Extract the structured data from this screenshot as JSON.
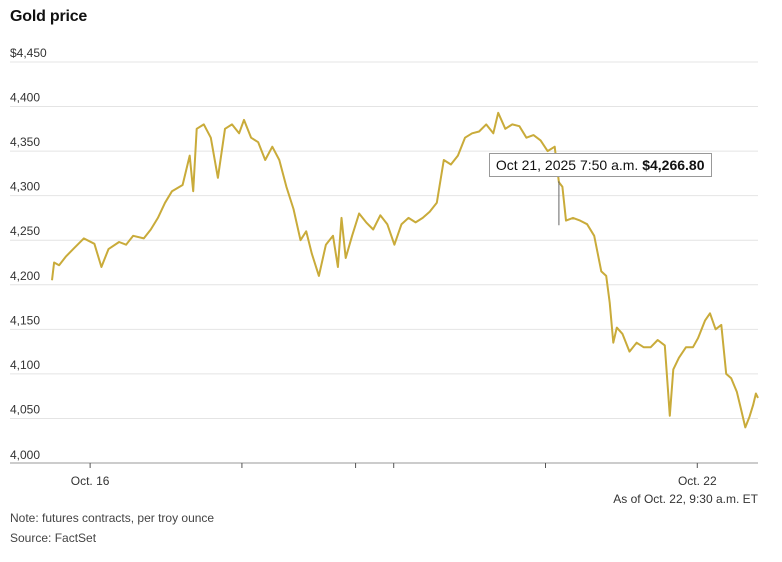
{
  "title": "Gold price",
  "as_of": "As of Oct. 22, 9:30 a.m. ET",
  "note": "Note: futures contracts, per troy ounce",
  "source": "Source: FactSet",
  "tooltip": {
    "time": "Oct 21, 2025 7:50 a.m.",
    "value": "$4,266.80"
  },
  "colors": {
    "line": "#c9ab3a",
    "grid": "#e4e4e4",
    "axis": "#999999"
  },
  "chart_data": {
    "type": "line",
    "title": "Gold price",
    "xlabel": "",
    "ylabel": "",
    "ylim": [
      4000,
      4450
    ],
    "y_ticks": [
      4000,
      4050,
      4100,
      4150,
      4200,
      4250,
      4300,
      4350,
      4400,
      4450
    ],
    "y_tick_labels": [
      "4,000",
      "4,050",
      "4,100",
      "4,150",
      "4,200",
      "4,250",
      "4,300",
      "4,350",
      "4,400",
      "$4,450"
    ],
    "x_ticks": [
      {
        "x": 0.054,
        "label": "Oct. 16"
      },
      {
        "x": 0.269,
        "label": ""
      },
      {
        "x": 0.43,
        "label": ""
      },
      {
        "x": 0.484,
        "label": ""
      },
      {
        "x": 0.699,
        "label": ""
      },
      {
        "x": 0.914,
        "label": "Oct. 22"
      }
    ],
    "grid": true,
    "series": [
      {
        "values": [
          [
            0.0,
            4205
          ],
          [
            0.003,
            4225
          ],
          [
            0.01,
            4222
          ],
          [
            0.02,
            4232
          ],
          [
            0.03,
            4240
          ],
          [
            0.045,
            4252
          ],
          [
            0.06,
            4246
          ],
          [
            0.07,
            4220
          ],
          [
            0.08,
            4240
          ],
          [
            0.095,
            4248
          ],
          [
            0.105,
            4245
          ],
          [
            0.115,
            4255
          ],
          [
            0.13,
            4252
          ],
          [
            0.14,
            4262
          ],
          [
            0.15,
            4275
          ],
          [
            0.16,
            4292
          ],
          [
            0.17,
            4305
          ],
          [
            0.185,
            4312
          ],
          [
            0.195,
            4345
          ],
          [
            0.2,
            4305
          ],
          [
            0.205,
            4375
          ],
          [
            0.215,
            4380
          ],
          [
            0.225,
            4365
          ],
          [
            0.235,
            4320
          ],
          [
            0.245,
            4375
          ],
          [
            0.255,
            4380
          ],
          [
            0.265,
            4370
          ],
          [
            0.272,
            4385
          ],
          [
            0.282,
            4365
          ],
          [
            0.292,
            4360
          ],
          [
            0.302,
            4340
          ],
          [
            0.312,
            4355
          ],
          [
            0.322,
            4340
          ],
          [
            0.332,
            4310
          ],
          [
            0.342,
            4285
          ],
          [
            0.352,
            4250
          ],
          [
            0.36,
            4260
          ],
          [
            0.368,
            4235
          ],
          [
            0.378,
            4210
          ],
          [
            0.388,
            4245
          ],
          [
            0.398,
            4255
          ],
          [
            0.405,
            4220
          ],
          [
            0.41,
            4275
          ],
          [
            0.416,
            4230
          ],
          [
            0.425,
            4255
          ],
          [
            0.435,
            4280
          ],
          [
            0.445,
            4270
          ],
          [
            0.455,
            4262
          ],
          [
            0.465,
            4278
          ],
          [
            0.475,
            4268
          ],
          [
            0.485,
            4245
          ],
          [
            0.495,
            4268
          ],
          [
            0.505,
            4275
          ],
          [
            0.515,
            4270
          ],
          [
            0.525,
            4275
          ],
          [
            0.535,
            4282
          ],
          [
            0.545,
            4292
          ],
          [
            0.555,
            4340
          ],
          [
            0.565,
            4335
          ],
          [
            0.575,
            4345
          ],
          [
            0.585,
            4365
          ],
          [
            0.595,
            4370
          ],
          [
            0.605,
            4372
          ],
          [
            0.615,
            4380
          ],
          [
            0.625,
            4370
          ],
          [
            0.632,
            4393
          ],
          [
            0.642,
            4375
          ],
          [
            0.652,
            4380
          ],
          [
            0.662,
            4378
          ],
          [
            0.672,
            4365
          ],
          [
            0.682,
            4368
          ],
          [
            0.692,
            4362
          ],
          [
            0.702,
            4350
          ],
          [
            0.712,
            4355
          ],
          [
            0.718,
            4315
          ],
          [
            0.723,
            4310
          ],
          [
            0.728,
            4272
          ],
          [
            0.738,
            4275
          ],
          [
            0.748,
            4272
          ],
          [
            0.758,
            4268
          ],
          [
            0.768,
            4255
          ],
          [
            0.778,
            4215
          ],
          [
            0.785,
            4210
          ],
          [
            0.79,
            4180
          ],
          [
            0.795,
            4135
          ],
          [
            0.8,
            4152
          ],
          [
            0.808,
            4145
          ],
          [
            0.818,
            4125
          ],
          [
            0.828,
            4135
          ],
          [
            0.838,
            4130
          ],
          [
            0.848,
            4130
          ],
          [
            0.858,
            4138
          ],
          [
            0.868,
            4132
          ],
          [
            0.875,
            4053
          ],
          [
            0.88,
            4105
          ],
          [
            0.888,
            4118
          ],
          [
            0.898,
            4130
          ],
          [
            0.908,
            4130
          ],
          [
            0.915,
            4140
          ],
          [
            0.925,
            4160
          ],
          [
            0.932,
            4168
          ],
          [
            0.94,
            4150
          ],
          [
            0.948,
            4155
          ],
          [
            0.955,
            4100
          ],
          [
            0.962,
            4095
          ],
          [
            0.97,
            4080
          ],
          [
            0.976,
            4060
          ],
          [
            0.982,
            4040
          ],
          [
            0.988,
            4052
          ],
          [
            0.993,
            4065
          ],
          [
            0.997,
            4078
          ],
          [
            1.0,
            4073
          ]
        ]
      }
    ]
  }
}
